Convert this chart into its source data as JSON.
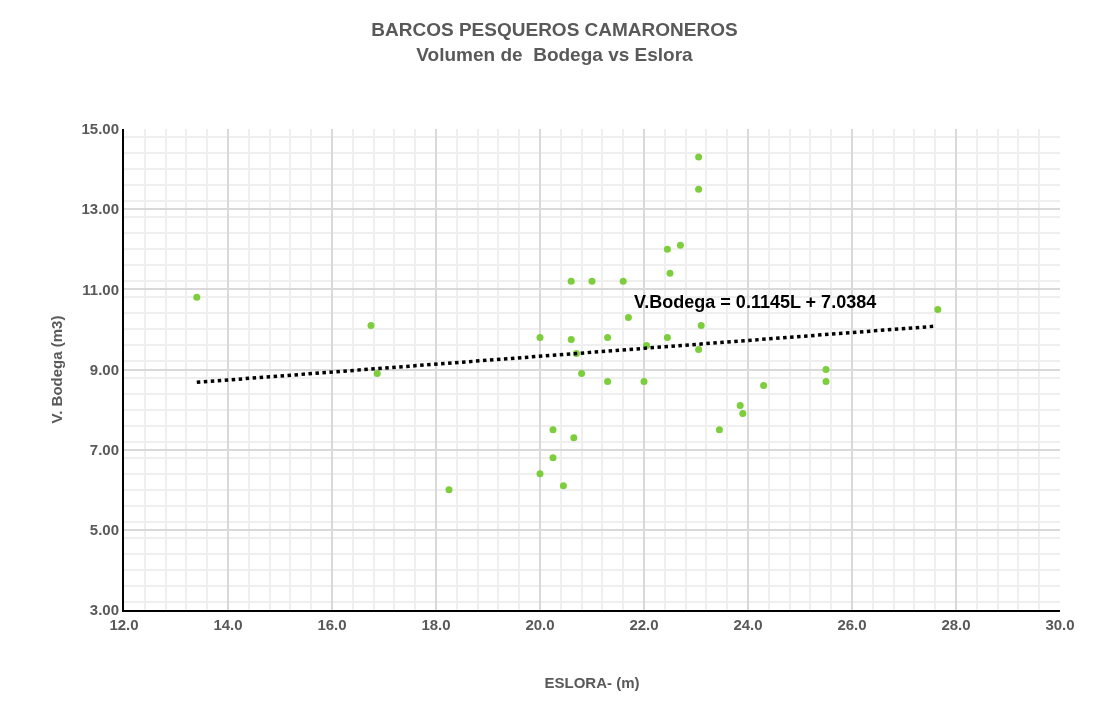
{
  "chart_data": {
    "type": "scatter",
    "title": "BARCOS PESQUEROS CAMARONEROS",
    "subtitle": "Volumen de  Bodega vs Eslora",
    "xlabel": "ESLORA- (m)",
    "ylabel": "V. Bodega (m3)",
    "annotations": [
      "V.Bodega = 0.1145L + 7.0384"
    ],
    "series": [
      {
        "color": "#7dce3c",
        "marker": "circle",
        "x": [
          13.4,
          16.75,
          16.87,
          18.25,
          20.0,
          20.0,
          20.25,
          20.25,
          20.45,
          20.6,
          20.6,
          20.7,
          20.65,
          20.8,
          21.0,
          21.3,
          21.3,
          21.6,
          21.7,
          22.0,
          22.05,
          22.45,
          22.45,
          22.5,
          22.7,
          23.05,
          23.05,
          23.1,
          23.05,
          23.45,
          23.85,
          23.9,
          24.3,
          25.5,
          25.5,
          27.65
        ],
        "values": [
          10.8,
          10.1,
          8.9,
          6.0,
          9.8,
          6.4,
          7.5,
          6.8,
          6.1,
          11.2,
          9.75,
          9.4,
          7.3,
          8.9,
          11.2,
          9.8,
          8.7,
          11.2,
          10.3,
          8.7,
          9.6,
          12.0,
          9.8,
          11.4,
          12.1,
          14.3,
          13.5,
          10.1,
          9.5,
          7.5,
          8.1,
          7.9,
          8.6,
          9.0,
          8.7,
          10.5
        ]
      },
      {
        "type": "line",
        "color": "#000000",
        "line_style": "dotted",
        "marker": "none",
        "x": [
          13.4,
          27.6
        ],
        "values": [
          8.68,
          10.08
        ]
      }
    ],
    "xlim": [
      12,
      30
    ],
    "xticks": [
      {
        "value": 12,
        "label": "12.0"
      },
      {
        "value": 14,
        "label": "14.0"
      },
      {
        "value": 16,
        "label": "16.0"
      },
      {
        "value": 18,
        "label": "18.0"
      },
      {
        "value": 20,
        "label": "20.0"
      },
      {
        "value": 22,
        "label": "22.0"
      },
      {
        "value": 24,
        "label": "24.0"
      },
      {
        "value": 26,
        "label": "26.0"
      },
      {
        "value": 28,
        "label": "28.0"
      },
      {
        "value": 30,
        "label": "30.0"
      }
    ],
    "ylim": [
      3,
      15
    ],
    "yticks": [
      {
        "value": 3,
        "label": "3.00"
      },
      {
        "value": 5,
        "label": "5.00"
      },
      {
        "value": 7,
        "label": "7.00"
      },
      {
        "value": 9,
        "label": "9.00"
      },
      {
        "value": 11,
        "label": "11.00"
      },
      {
        "value": 13,
        "label": "13.00"
      },
      {
        "value": 15,
        "label": "15.00"
      }
    ],
    "grid": true
  }
}
